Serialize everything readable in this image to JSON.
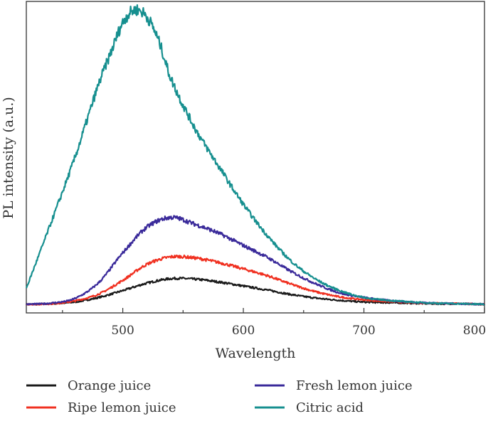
{
  "chart_data": {
    "type": "line",
    "title": "",
    "xlabel": "Wavelength",
    "ylabel": "PL intensity (a.u.)",
    "xlim": [
      420,
      800
    ],
    "ylim": [
      -0.15,
      5.3
    ],
    "xticks": [
      500,
      600,
      700,
      800
    ],
    "xtick_labels": [
      "500",
      "600",
      "700",
      "800"
    ],
    "grid": false,
    "legend_position": "bottom",
    "series": [
      {
        "name": "Orange juice",
        "color": "#1a1a1a",
        "x": [
          420,
          440,
          460,
          480,
          500,
          520,
          540,
          560,
          580,
          600,
          620,
          640,
          660,
          680,
          700,
          720,
          740,
          760,
          780,
          800
        ],
        "y": [
          0,
          0.01,
          0.04,
          0.12,
          0.24,
          0.37,
          0.45,
          0.44,
          0.39,
          0.32,
          0.25,
          0.17,
          0.11,
          0.07,
          0.04,
          0.03,
          0.02,
          0.01,
          0.01,
          0
        ]
      },
      {
        "name": "Ripe lemon juice",
        "color": "#f03020",
        "x": [
          420,
          440,
          460,
          480,
          500,
          520,
          540,
          560,
          580,
          600,
          620,
          640,
          660,
          680,
          700,
          720,
          740,
          760,
          780,
          800
        ],
        "y": [
          0,
          0.01,
          0.06,
          0.18,
          0.42,
          0.7,
          0.83,
          0.81,
          0.73,
          0.62,
          0.5,
          0.35,
          0.22,
          0.13,
          0.08,
          0.05,
          0.03,
          0.02,
          0.01,
          0
        ]
      },
      {
        "name": "Fresh lemon juice",
        "color": "#3a2a9a",
        "x": [
          420,
          440,
          460,
          480,
          500,
          520,
          540,
          560,
          580,
          600,
          620,
          640,
          660,
          680,
          700,
          720,
          740,
          760,
          780,
          800
        ],
        "y": [
          0,
          0.02,
          0.1,
          0.38,
          0.9,
          1.35,
          1.52,
          1.4,
          1.24,
          1.03,
          0.82,
          0.57,
          0.36,
          0.2,
          0.12,
          0.07,
          0.04,
          0.02,
          0.01,
          0
        ]
      },
      {
        "name": "Citric acid",
        "color": "#168f8f",
        "x": [
          420,
          440,
          460,
          470,
          480,
          490,
          500,
          510,
          520,
          530,
          540,
          560,
          580,
          600,
          620,
          640,
          660,
          680,
          700,
          720,
          740,
          760,
          780,
          800
        ],
        "y": [
          0.28,
          1.4,
          2.55,
          3.2,
          3.85,
          4.4,
          4.93,
          5.15,
          5.03,
          4.6,
          3.95,
          3.08,
          2.4,
          1.75,
          1.2,
          0.75,
          0.44,
          0.24,
          0.12,
          0.07,
          0.04,
          0.02,
          0.01,
          0
        ]
      }
    ]
  }
}
